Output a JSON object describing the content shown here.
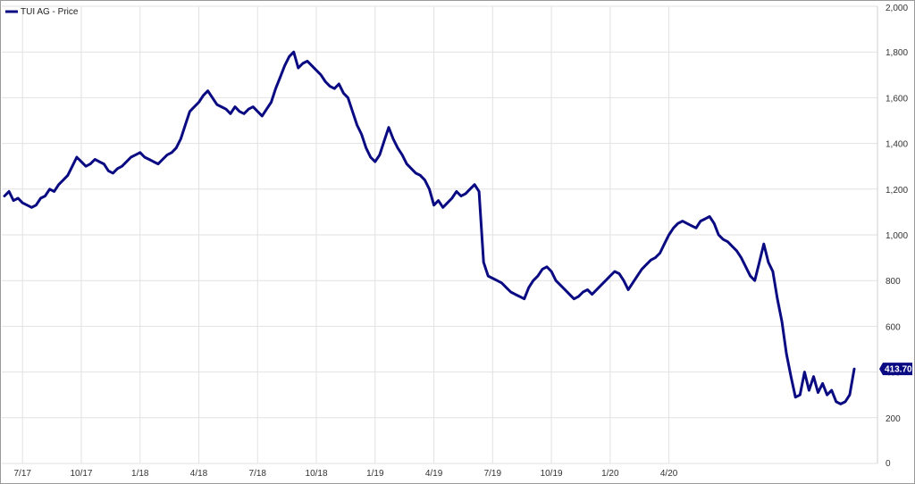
{
  "chart_data": {
    "type": "line",
    "title": "",
    "xlabel": "",
    "ylabel": "",
    "legend": {
      "label": "TUI AG - Price",
      "placement": "top-left"
    },
    "grid": true,
    "colors": {
      "series": "#0a0a82",
      "grid": "#e2e2e2",
      "last_label_bg": "#0a0a82"
    },
    "x_tick_labels": [
      "7/17",
      "10/17",
      "1/18",
      "4/18",
      "7/18",
      "10/18",
      "1/19",
      "4/19",
      "7/19",
      "10/19",
      "1/20",
      "4/20"
    ],
    "x_tick_index": [
      4,
      17,
      30,
      43,
      56,
      69,
      82,
      95,
      108,
      121,
      134,
      147
    ],
    "y_ticks": [
      0,
      200,
      400,
      600,
      800,
      1000,
      1200,
      1400,
      1600,
      1800,
      2000
    ],
    "y_tick_labels": [
      "0",
      "200",
      "400",
      "600",
      "800",
      "1,000",
      "1,200",
      "1,400",
      "1,600",
      "1,800",
      "2,000"
    ],
    "ylim": [
      0,
      2000
    ],
    "last_value_label": "413.70",
    "series": [
      {
        "name": "TUI AG - Price",
        "x_period": "weekly, Jun 2017 – May 2020",
        "values": [
          1170,
          1190,
          1150,
          1160,
          1140,
          1130,
          1120,
          1130,
          1160,
          1170,
          1200,
          1190,
          1220,
          1240,
          1260,
          1300,
          1340,
          1320,
          1300,
          1310,
          1330,
          1320,
          1310,
          1280,
          1270,
          1290,
          1300,
          1320,
          1340,
          1350,
          1360,
          1340,
          1330,
          1320,
          1310,
          1330,
          1350,
          1360,
          1380,
          1420,
          1480,
          1540,
          1560,
          1580,
          1610,
          1630,
          1600,
          1570,
          1560,
          1550,
          1530,
          1560,
          1540,
          1530,
          1550,
          1560,
          1540,
          1520,
          1550,
          1580,
          1640,
          1690,
          1740,
          1780,
          1800,
          1730,
          1750,
          1760,
          1740,
          1720,
          1700,
          1670,
          1650,
          1640,
          1660,
          1620,
          1600,
          1540,
          1480,
          1440,
          1380,
          1340,
          1320,
          1350,
          1410,
          1470,
          1420,
          1380,
          1350,
          1310,
          1290,
          1270,
          1260,
          1240,
          1200,
          1130,
          1150,
          1120,
          1140,
          1160,
          1190,
          1170,
          1180,
          1200,
          1220,
          1190,
          880,
          820,
          810,
          800,
          790,
          770,
          750,
          740,
          730,
          720,
          770,
          800,
          820,
          850,
          860,
          840,
          800,
          780,
          760,
          740,
          720,
          730,
          750,
          760,
          740,
          760,
          780,
          800,
          820,
          840,
          830,
          800,
          760,
          790,
          820,
          850,
          870,
          890,
          900,
          920,
          960,
          1000,
          1030,
          1050,
          1060,
          1050,
          1040,
          1030,
          1060,
          1070,
          1080,
          1050,
          1000,
          980,
          970,
          950,
          930,
          900,
          860,
          820,
          800,
          880,
          960,
          880,
          840,
          720,
          620,
          480,
          380,
          290,
          300,
          400,
          320,
          380,
          310,
          350,
          300,
          320,
          270,
          260,
          270,
          300,
          413.7
        ]
      }
    ]
  }
}
